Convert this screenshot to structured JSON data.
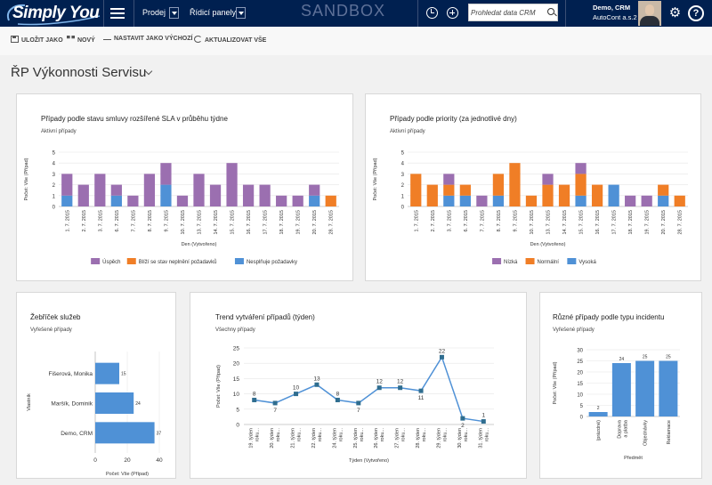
{
  "brand": {
    "logo_text": "Simply You"
  },
  "topnav": {
    "sales_label": "Prodej",
    "dashboards_label": "Řídicí panely",
    "environment": "SANDBOX",
    "search_placeholder": "Prohledat data CRM",
    "user_name": "Demo, CRM",
    "user_org": "AutoCont a.s.2",
    "help_symbol": "?"
  },
  "commands": {
    "save": "ULOŽIT JAKO",
    "new": "NOVÝ",
    "set_default": "NASTAVIT JAKO VÝCHOZÍ",
    "refresh": "AKTUALIZOVAT VŠE"
  },
  "dashboard": {
    "title": "ŘP Výkonnosti Servisu"
  },
  "colors": {
    "purple": "#9b6fb0",
    "orange": "#f07e26",
    "blue": "#4f91d6",
    "teal": "#2f6d8f",
    "header": "#002050"
  },
  "chart_data": [
    {
      "type": "bar",
      "stacked": true,
      "title": "Případy podle stavu smluvy rozšířené SLA v průběhu týdne",
      "subtitle": "Aktivní případy",
      "ylabel": "Počet: Vše (Případ)",
      "xlabel": "Den (Vytvořeno)",
      "ylim": [
        0,
        5
      ],
      "yticks": [
        0,
        1,
        2,
        3,
        4,
        5
      ],
      "categories": [
        "1. 7. 2015",
        "2. 7. 2015",
        "3. 7. 2015",
        "6. 7. 2015",
        "7. 7. 2015",
        "8. 7. 2015",
        "9. 7. 2015",
        "10. 7. 2015",
        "13. 7. 2015",
        "14. 7. 2015",
        "15. 7. 2015",
        "16. 7. 2015",
        "17. 7. 2015",
        "18. 7. 2015",
        "19. 7. 2015",
        "20. 7. 2015",
        "28. 7. 2015"
      ],
      "series": [
        {
          "name": "Úspěch",
          "color": "#9b6fb0",
          "values": [
            2,
            2,
            3,
            1,
            1,
            3,
            2,
            1,
            3,
            2,
            4,
            2,
            2,
            1,
            1,
            1,
            0
          ]
        },
        {
          "name": "Blíží se stav neplnění požadavků",
          "color": "#f07e26",
          "values": [
            0,
            0,
            0,
            0,
            0,
            0,
            0,
            0,
            0,
            0,
            0,
            0,
            0,
            0,
            0,
            0,
            1
          ]
        },
        {
          "name": "Nesplňuje požadavky",
          "color": "#4f91d6",
          "values": [
            1,
            0,
            0,
            1,
            0,
            0,
            2,
            0,
            0,
            0,
            0,
            0,
            0,
            0,
            0,
            1,
            0
          ]
        }
      ]
    },
    {
      "type": "bar",
      "stacked": true,
      "title": "Případy podle priority (za jednotlivé dny)",
      "subtitle": "Aktivní případy",
      "ylabel": "Počet: Vše (Případ)",
      "xlabel": "Den (Vytvořeno)",
      "ylim": [
        0,
        5
      ],
      "yticks": [
        0,
        1,
        2,
        3,
        4,
        5
      ],
      "categories": [
        "1. 7. 2015",
        "2. 7. 2015",
        "3. 7. 2015",
        "6. 7. 2015",
        "7. 7. 2015",
        "8. 7. 2015",
        "9. 7. 2015",
        "10. 7. 2015",
        "13. 7. 2015",
        "14. 7. 2015",
        "15. 7. 2015",
        "16. 7. 2015",
        "17. 7. 2015",
        "18. 7. 2015",
        "19. 7. 2015",
        "20. 7. 2015",
        "28. 7. 2015"
      ],
      "series": [
        {
          "name": "Nízká",
          "color": "#9b6fb0",
          "values": [
            0,
            0,
            1,
            0,
            1,
            0,
            0,
            0,
            1,
            0,
            1,
            0,
            0,
            1,
            1,
            0,
            0
          ]
        },
        {
          "name": "Normální",
          "color": "#f07e26",
          "values": [
            3,
            2,
            1,
            1,
            0,
            2,
            4,
            1,
            2,
            2,
            2,
            2,
            0,
            0,
            0,
            1,
            1
          ]
        },
        {
          "name": "Vysoká",
          "color": "#4f91d6",
          "values": [
            0,
            0,
            1,
            1,
            0,
            1,
            0,
            0,
            0,
            0,
            1,
            0,
            2,
            0,
            0,
            1,
            0
          ]
        }
      ]
    },
    {
      "type": "bar",
      "orientation": "horizontal",
      "title": "Žebříček služeb",
      "subtitle": "Vyřešené případy",
      "ylabel": "Vlastník",
      "xlabel": "Počet: Vše (Případ)",
      "xlim": [
        0,
        40
      ],
      "xticks": [
        0,
        20,
        40
      ],
      "categories": [
        "Fišerová, Monika",
        "Maršík, Dominik",
        "Demo, CRM"
      ],
      "values": [
        15,
        24,
        37
      ],
      "color": "#4f91d6"
    },
    {
      "type": "line",
      "title": "Trend vytváření případů (týden)",
      "subtitle": "Všechny případy",
      "ylabel": "Počet: Vše (Případ)",
      "xlabel": "Týden (Vytvořeno)",
      "ylim": [
        0,
        25
      ],
      "yticks": [
        0,
        5,
        10,
        15,
        20,
        25
      ],
      "categories": [
        [
          "19. týden",
          "roku..."
        ],
        [
          "20. týden",
          "roku..."
        ],
        [
          "21. týden",
          "roku..."
        ],
        [
          "22. týden",
          "roku..."
        ],
        [
          "24. týden",
          "roku..."
        ],
        [
          "25. týden",
          "roku..."
        ],
        [
          "26. týden",
          "roku..."
        ],
        [
          "27. týden",
          "roku..."
        ],
        [
          "28. týden",
          "roku..."
        ],
        [
          "29. týden",
          "roku..."
        ],
        [
          "30. týden",
          "roku..."
        ],
        [
          "31. týden",
          "roku..."
        ]
      ],
      "values": [
        8,
        7,
        10,
        13,
        8,
        7,
        12,
        12,
        11,
        22,
        2,
        1
      ],
      "color": "#4f91d6",
      "marker_color": "#2f6d8f"
    },
    {
      "type": "bar",
      "title": "Různé případy podle typu incidentu",
      "subtitle": "Vyřešené případy",
      "ylabel": "Počet: Vše (Případ)",
      "xlabel": "Předmět",
      "ylim": [
        0,
        30
      ],
      "yticks": [
        0,
        5,
        10,
        15,
        20,
        25,
        30
      ],
      "categories": [
        "(prázdné)",
        "Doprava a platba",
        "Objednávky",
        "Reklamace"
      ],
      "values": [
        2,
        24,
        25,
        25
      ],
      "color": "#4f91d6"
    }
  ]
}
